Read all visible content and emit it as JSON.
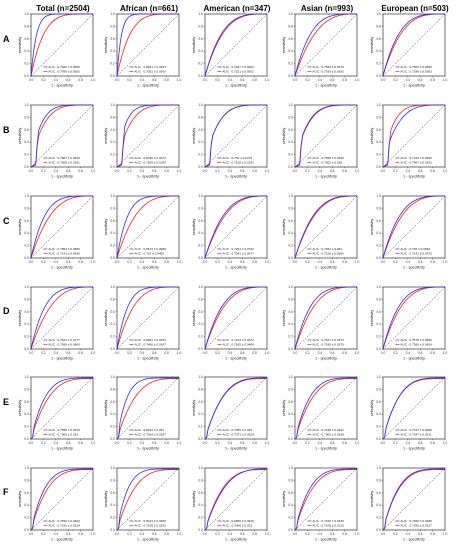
{
  "figure": {
    "columns": [
      "Total (n=2504)",
      "African (n=661)",
      "American (n=347)",
      "Asian (n=993)",
      "European (n=503)"
    ],
    "rows": [
      "A",
      "B",
      "C",
      "D",
      "E",
      "F"
    ],
    "xlabel": "1 - specificity",
    "ylabel": "sensitivity",
    "ticks": [
      "0.0",
      "0.2",
      "0.4",
      "0.6",
      "0.8",
      "1.0"
    ],
    "series_colors": {
      "blue": "#2c2cf0",
      "red": "#ee2222"
    }
  },
  "chart_data": [
    {
      "type": "line",
      "row": "A",
      "column": "Total (n=2504)",
      "blue_auc": "AUC : 0.7966 ± 0.0608",
      "red_auc": "AUC : 0.7096 ± 0.0505",
      "shape": "sharp-low"
    },
    {
      "type": "line",
      "row": "A",
      "column": "African (n=661)",
      "blue_auc": "AUC : 0.8621 ± 0.0453",
      "red_auc": "AUC : 0.7052 ± 0.0505",
      "shape": "sharp-low"
    },
    {
      "type": "line",
      "row": "A",
      "column": "American (n=347)",
      "blue_auc": "AUC : 0.7467 ± 0.0402",
      "red_auc": "AUC : 0.7321 ± 0.0502",
      "shape": "smooth"
    },
    {
      "type": "line",
      "row": "A",
      "column": "Asian (n=993)",
      "blue_auc": "AUC : 0.7594 ± 0.0579",
      "red_auc": "AUC : 0.7039 ± 0.0392",
      "shape": "smooth"
    },
    {
      "type": "line",
      "row": "A",
      "column": "European (n=503)",
      "blue_auc": "AUC : 0.7551 ± 0.0399",
      "red_auc": "AUC : 0.7296 ± 0.0363",
      "shape": "smooth"
    },
    {
      "type": "line",
      "row": "B",
      "column": "Total (n=2504)",
      "blue_auc": "AUC : 0.7987 ± 0.0528",
      "red_auc": "AUC : 0.7508 ± 0.0181",
      "shape": "step"
    },
    {
      "type": "line",
      "row": "B",
      "column": "African (n=661)",
      "blue_auc": "AUC : 0.8345 ± 0.0372",
      "red_auc": "AUC : 0.7509 ± 0.0166",
      "shape": "step"
    },
    {
      "type": "line",
      "row": "B",
      "column": "American (n=347)",
      "blue_auc": "AUC : 0.752 ± 0.0279",
      "red_auc": "AUC : 0.7518 ± 0.0191",
      "shape": "step"
    },
    {
      "type": "line",
      "row": "B",
      "column": "Asian (n=993)",
      "blue_auc": "AUC : 0.7598 ± 0.0292",
      "red_auc": "AUC : 0.7502 ± 0.018",
      "shape": "step"
    },
    {
      "type": "line",
      "row": "B",
      "column": "European (n=503)",
      "blue_auc": "AUC : 0.7233 ± 0.0262",
      "red_auc": "AUC : 0.7967 ± 0.0193",
      "shape": "step"
    },
    {
      "type": "line",
      "row": "C",
      "column": "Total (n=2504)",
      "blue_auc": "AUC : 0.7853 ± 0.0866",
      "red_auc": "AUC : 0.7141 ± 0.0436",
      "shape": "smooth"
    },
    {
      "type": "line",
      "row": "C",
      "column": "African (n=661)",
      "blue_auc": "AUC : 0.8672 ± 0.0988",
      "red_auc": "AUC : 0.723 ± 0.0405",
      "shape": "smooth"
    },
    {
      "type": "line",
      "row": "C",
      "column": "American (n=347)",
      "blue_auc": "AUC : 0.7254 ± 0.0702",
      "red_auc": "AUC : 0.7042 ± 0.0417",
      "shape": "smooth"
    },
    {
      "type": "line",
      "row": "C",
      "column": "Asian (n=993)",
      "blue_auc": "AUC : 0.7252 ± 0.081",
      "red_auc": "AUC : 0.7116 ± 0.0394",
      "shape": "smooth"
    },
    {
      "type": "line",
      "row": "C",
      "column": "European (n=503)",
      "blue_auc": "AUC : 0.745 ± 0.0663",
      "red_auc": "AUC : 0.7141 ± 0.0475",
      "shape": "smooth"
    },
    {
      "type": "line",
      "row": "D",
      "column": "Total (n=2504)",
      "blue_auc": "AUC : 0.7814 ± 0.0777",
      "red_auc": "AUC : 0.7089 ± 0.0400",
      "shape": "smooth"
    },
    {
      "type": "line",
      "row": "D",
      "column": "African (n=661)",
      "blue_auc": "AUC : 0.8661 ± 0.0484",
      "red_auc": "AUC : 0.7466 ± 0.0347",
      "shape": "smooth"
    },
    {
      "type": "line",
      "row": "D",
      "column": "American (n=347)",
      "blue_auc": "AUC : 0.7434 ± 0.0672",
      "red_auc": "AUC : 0.7165 ± 0.0469",
      "shape": "smooth"
    },
    {
      "type": "line",
      "row": "D",
      "column": "Asian (n=993)",
      "blue_auc": "AUC : 0.7627 ± 0.0478",
      "red_auc": "AUC : 0.7185 ± 0.0375",
      "shape": "smooth"
    },
    {
      "type": "line",
      "row": "D",
      "column": "European (n=503)",
      "blue_auc": "AUC : 0.7578 ± 0.0566",
      "red_auc": "AUC : 0.7266 ± 0.0426",
      "shape": "smooth"
    },
    {
      "type": "line",
      "row": "E",
      "column": "Total (n=2504)",
      "blue_auc": "AUC : 0.7558 ± 0.0516",
      "red_auc": "AUC : 0.7069 ± 0.023",
      "shape": "steep"
    },
    {
      "type": "line",
      "row": "E",
      "column": "African (n=661)",
      "blue_auc": "AUC : 0.8163 ± 0.051",
      "red_auc": "AUC : 0.7034 ± 0.0257",
      "shape": "steep"
    },
    {
      "type": "line",
      "row": "E",
      "column": "American (n=347)",
      "blue_auc": "AUC : 0.7085 ± 0.029",
      "red_auc": "AUC : 0.7071 ± 0.0224",
      "shape": "steep"
    },
    {
      "type": "line",
      "row": "E",
      "column": "Asian (n=993)",
      "blue_auc": "AUC : 0.7448 ± 0.0321",
      "red_auc": "AUC : 0.7065 ± 0.0258",
      "shape": "steep"
    },
    {
      "type": "line",
      "row": "E",
      "column": "European (n=503)",
      "blue_auc": "AUC : 0.7337 ± 0.0286",
      "red_auc": "AUC : 0.7347 ± 0.0211",
      "shape": "steep"
    },
    {
      "type": "line",
      "row": "F",
      "column": "Total (n=2504)",
      "blue_auc": "AUC : 0.7596 ± 0.0464",
      "red_auc": "AUC : 0.7192 ± 0.0214",
      "shape": "steep"
    },
    {
      "type": "line",
      "row": "F",
      "column": "African (n=661)",
      "blue_auc": "AUC : 0.8014 ± 0.0459",
      "red_auc": "AUC : 0.7106 ± 0.0192",
      "shape": "steep"
    },
    {
      "type": "line",
      "row": "F",
      "column": "American (n=347)",
      "blue_auc": "AUC : 0.6866 ± 0.0315",
      "red_auc": "AUC : 0.7066 ± 0.022",
      "shape": "steep"
    },
    {
      "type": "line",
      "row": "F",
      "column": "Asian (n=993)",
      "blue_auc": "AUC : 0.7426 ± 0.0339",
      "red_auc": "AUC : 0.7108 ± 0.0213",
      "shape": "steep"
    },
    {
      "type": "line",
      "row": "F",
      "column": "European (n=503)",
      "blue_auc": "AUC : 0.7366 ± 0.0286",
      "red_auc": "AUC : 0.7296 ± 0.0227",
      "shape": "steep"
    }
  ]
}
